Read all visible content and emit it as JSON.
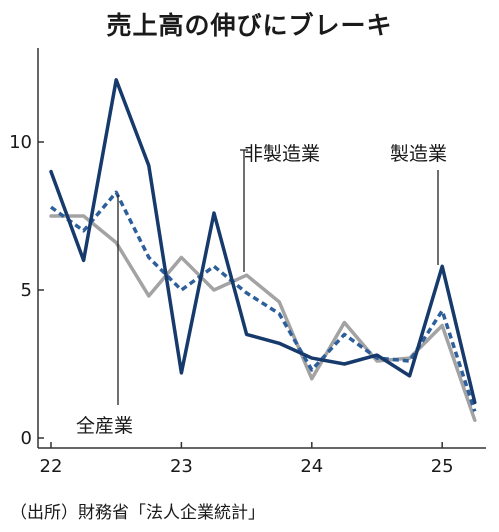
{
  "title": "売上高の伸びにブレーキ",
  "source": "（出所）財務省「法人企業統計」",
  "chart_data": {
    "type": "line",
    "title": "売上高の伸びにブレーキ",
    "xlabel": "",
    "ylabel": "",
    "x_ticks": [
      "22",
      "23",
      "24",
      "25"
    ],
    "y_ticks": [
      "0",
      "5",
      "10"
    ],
    "ylim": [
      0,
      13
    ],
    "grid": false,
    "x": [
      "22-Q1",
      "22-Q2",
      "22-Q3",
      "22-Q4",
      "23-Q1",
      "23-Q2",
      "23-Q3",
      "23-Q4",
      "24-Q1",
      "24-Q2",
      "24-Q3",
      "24-Q4",
      "25-Q1",
      "25-Q2"
    ],
    "series": [
      {
        "name": "製造業",
        "color": "#163a6b",
        "style": "solid",
        "values": [
          9.0,
          6.0,
          12.1,
          9.2,
          2.2,
          7.6,
          3.5,
          3.2,
          2.7,
          2.5,
          2.8,
          2.1,
          5.8,
          1.2
        ]
      },
      {
        "name": "全産業",
        "color": "#2d5f9a",
        "style": "dashed",
        "values": [
          7.8,
          7.0,
          8.3,
          6.1,
          5.0,
          5.8,
          4.9,
          4.2,
          2.3,
          3.5,
          2.7,
          2.6,
          4.3,
          0.9
        ]
      },
      {
        "name": "非製造業",
        "color": "#a3a3a3",
        "style": "solid",
        "values": [
          7.5,
          7.5,
          6.6,
          4.8,
          6.1,
          5.0,
          5.5,
          4.6,
          2.0,
          3.9,
          2.6,
          2.7,
          3.8,
          0.6
        ]
      }
    ]
  }
}
